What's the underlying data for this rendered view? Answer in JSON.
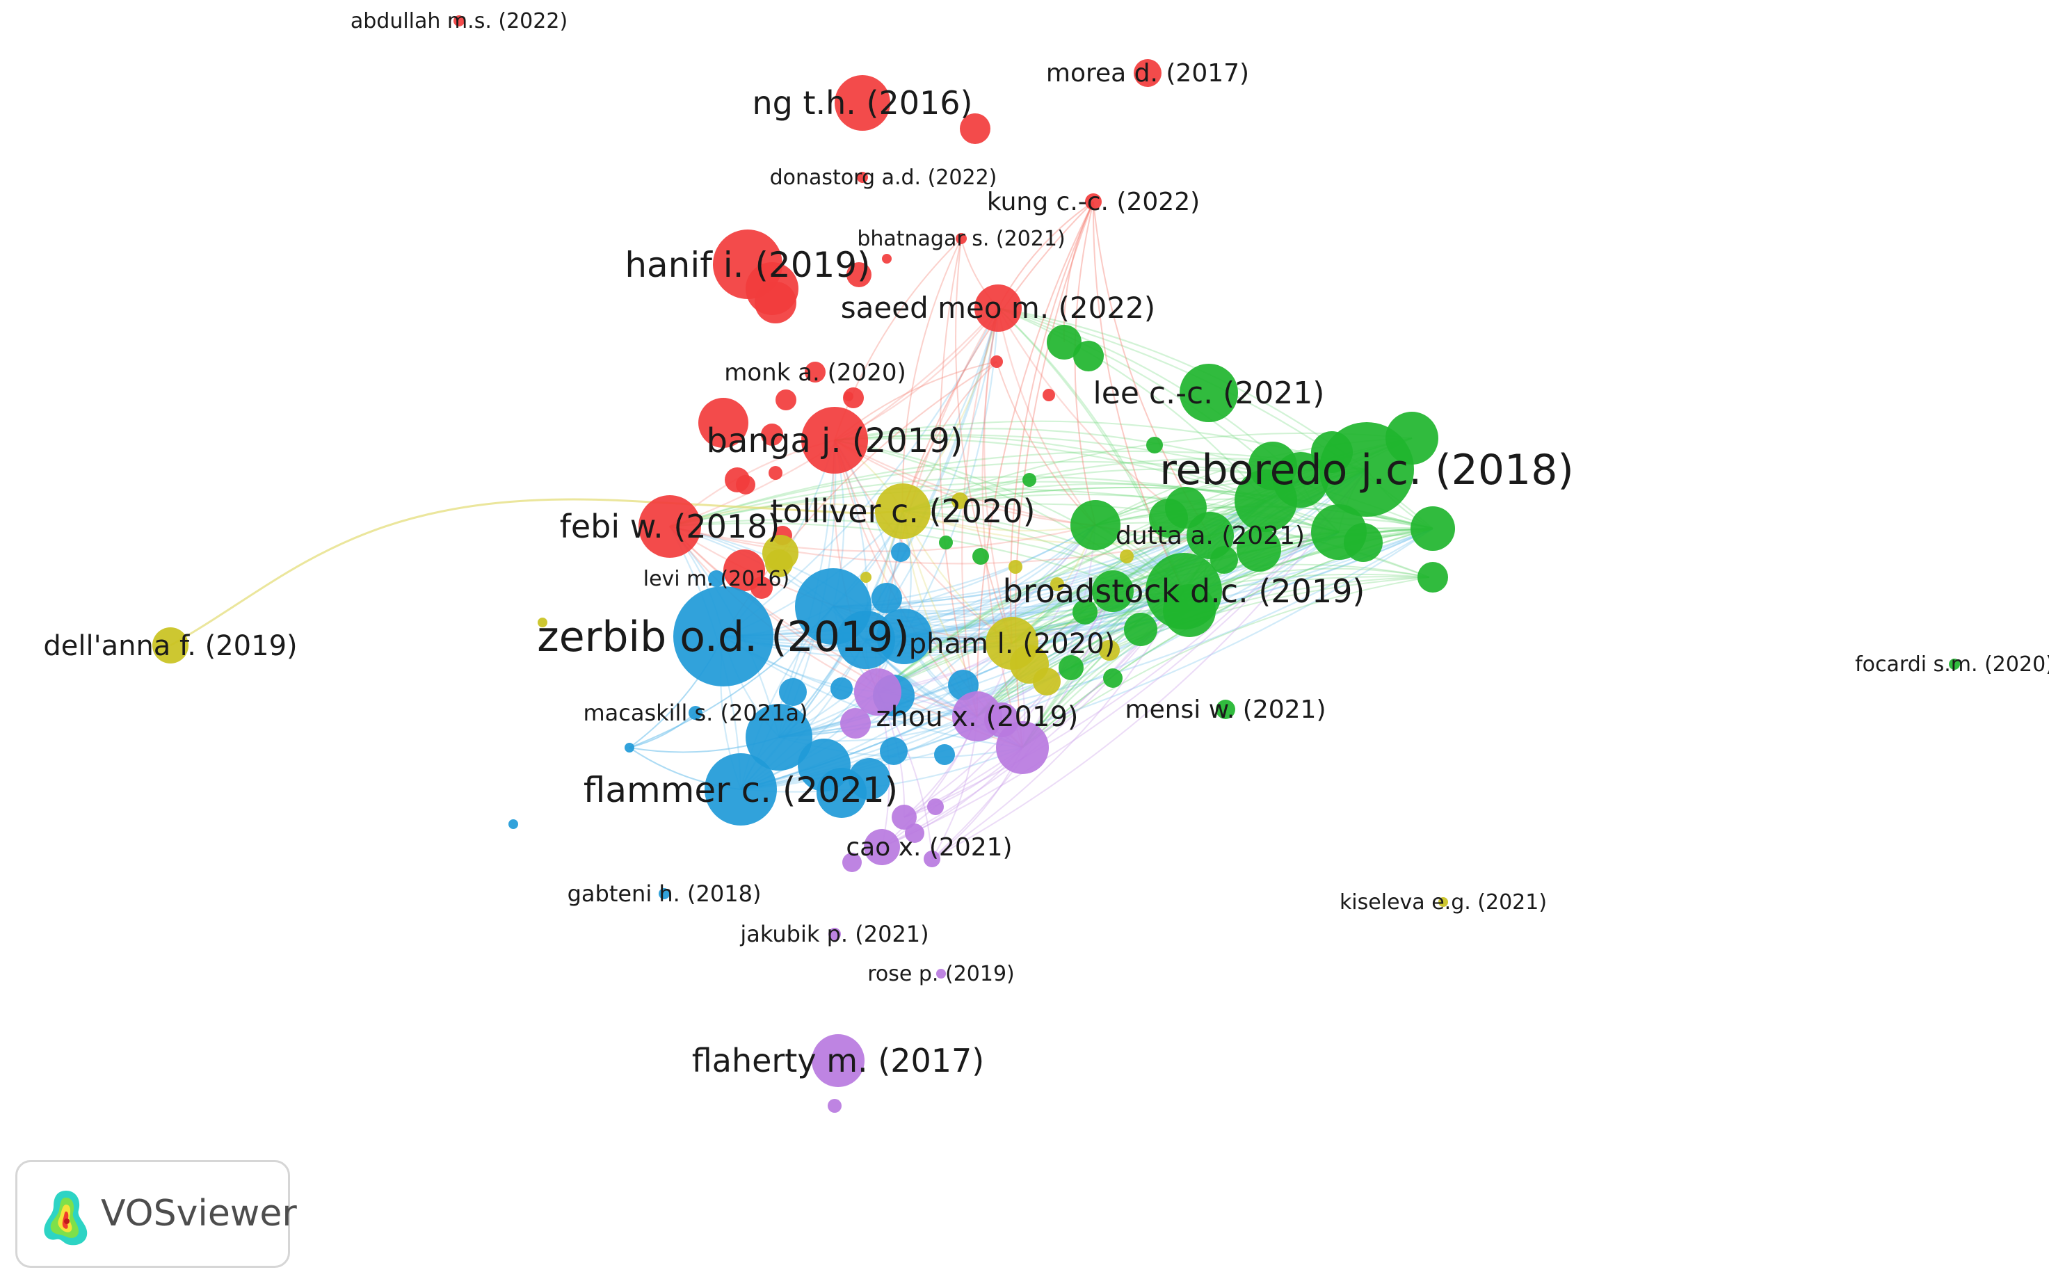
{
  "colors": {
    "red": "#f23c3c",
    "green": "#20b52e",
    "blue": "#1f9ad8",
    "yellow": "#c9c21f",
    "purple": "#b979e0"
  },
  "nodes": [
    {
      "label": "abdullah m.s. (2022)",
      "cluster": "red"
    },
    {
      "label": "morea d. (2017)",
      "cluster": "red"
    },
    {
      "label": "ng t.h. (2016)",
      "cluster": "red"
    },
    {
      "label": "donastorg a.d. (2022)",
      "cluster": "red"
    },
    {
      "label": "kung c.-c. (2022)",
      "cluster": "red"
    },
    {
      "label": "bhatnagar s. (2021)",
      "cluster": "red"
    },
    {
      "label": "hanif i. (2019)",
      "cluster": "red"
    },
    {
      "label": "saeed meo m. (2022)",
      "cluster": "red"
    },
    {
      "label": "monk a. (2020)",
      "cluster": "red"
    },
    {
      "label": "lee c.-c. (2021)",
      "cluster": "green"
    },
    {
      "label": "banga j. (2019)",
      "cluster": "red"
    },
    {
      "label": "reboredo j.c. (2018)",
      "cluster": "green"
    },
    {
      "label": "tolliver c. (2020)",
      "cluster": "yellow"
    },
    {
      "label": "febi w. (2018)",
      "cluster": "red"
    },
    {
      "label": "dutta a. (2021)",
      "cluster": "green"
    },
    {
      "label": "levi m. (2016)",
      "cluster": "blue"
    },
    {
      "label": "broadstock d.c. (2019)",
      "cluster": "green"
    },
    {
      "label": "dell'anna f. (2019)",
      "cluster": "yellow"
    },
    {
      "label": "zerbib o.d. (2019)",
      "cluster": "blue"
    },
    {
      "label": "pham l. (2020)",
      "cluster": "yellow"
    },
    {
      "label": "focardi s.m. (2020)",
      "cluster": "green"
    },
    {
      "label": "macaskill s. (2021a)",
      "cluster": "blue"
    },
    {
      "label": "zhou x. (2019)",
      "cluster": "purple"
    },
    {
      "label": "mensi w. (2021)",
      "cluster": "green"
    },
    {
      "label": "flammer c. (2021)",
      "cluster": "blue"
    },
    {
      "label": "cao x. (2021)",
      "cluster": "purple"
    },
    {
      "label": "gabteni h. (2018)",
      "cluster": "blue"
    },
    {
      "label": "kiseleva e.g. (2021)",
      "cluster": "yellow"
    },
    {
      "label": "jakubik p. (2021)",
      "cluster": "purple"
    },
    {
      "label": "rose p. (2019)",
      "cluster": "purple"
    },
    {
      "label": "flaherty m. (2017)",
      "cluster": "purple"
    }
  ],
  "badge": {
    "text": "VOSviewer",
    "logo_icon": "vosviewer-logo-icon"
  }
}
